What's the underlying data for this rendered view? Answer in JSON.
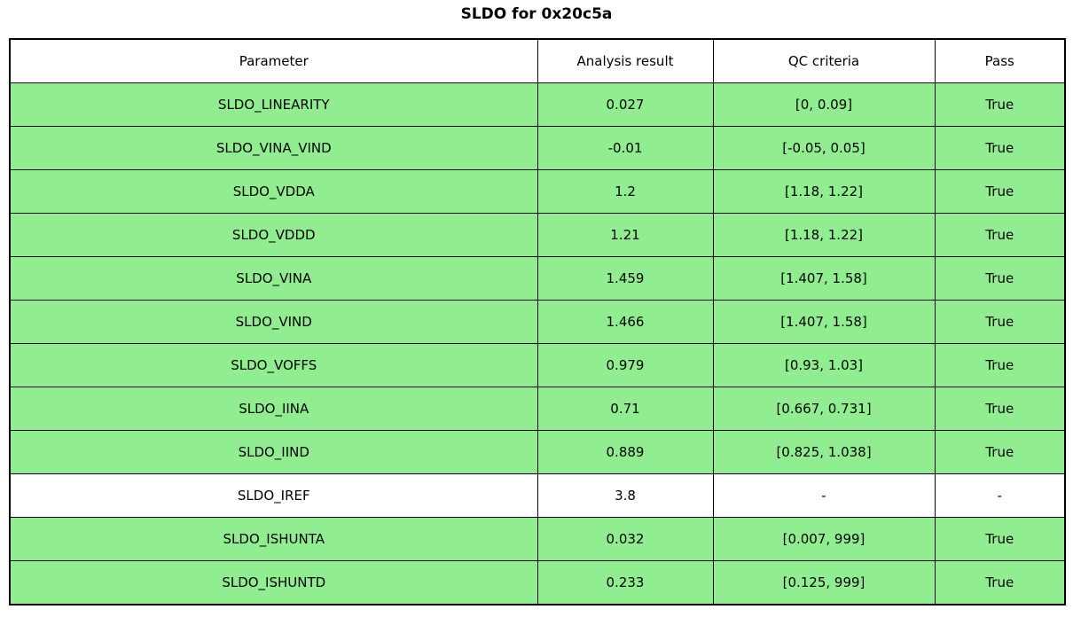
{
  "title": "SLDO for 0x20c5a",
  "table": {
    "columns": [
      "Parameter",
      "Analysis result",
      "QC criteria",
      "Pass"
    ],
    "row_colors": {
      "pass": "#90EE90",
      "neutral": "#ffffff"
    },
    "rows": [
      {
        "parameter": "SLDO_LINEARITY",
        "analysis_result": "0.027",
        "qc_criteria": "[0, 0.09]",
        "pass": "True",
        "color": "green"
      },
      {
        "parameter": "SLDO_VINA_VIND",
        "analysis_result": "-0.01",
        "qc_criteria": "[-0.05, 0.05]",
        "pass": "True",
        "color": "green"
      },
      {
        "parameter": "SLDO_VDDA",
        "analysis_result": "1.2",
        "qc_criteria": "[1.18, 1.22]",
        "pass": "True",
        "color": "green"
      },
      {
        "parameter": "SLDO_VDDD",
        "analysis_result": "1.21",
        "qc_criteria": "[1.18, 1.22]",
        "pass": "True",
        "color": "green"
      },
      {
        "parameter": "SLDO_VINA",
        "analysis_result": "1.459",
        "qc_criteria": "[1.407, 1.58]",
        "pass": "True",
        "color": "green"
      },
      {
        "parameter": "SLDO_VIND",
        "analysis_result": "1.466",
        "qc_criteria": "[1.407, 1.58]",
        "pass": "True",
        "color": "green"
      },
      {
        "parameter": "SLDO_VOFFS",
        "analysis_result": "0.979",
        "qc_criteria": "[0.93, 1.03]",
        "pass": "True",
        "color": "green"
      },
      {
        "parameter": "SLDO_IINA",
        "analysis_result": "0.71",
        "qc_criteria": "[0.667, 0.731]",
        "pass": "True",
        "color": "green"
      },
      {
        "parameter": "SLDO_IIND",
        "analysis_result": "0.889",
        "qc_criteria": "[0.825, 1.038]",
        "pass": "True",
        "color": "green"
      },
      {
        "parameter": "SLDO_IREF",
        "analysis_result": "3.8",
        "qc_criteria": "-",
        "pass": "-",
        "color": "white"
      },
      {
        "parameter": "SLDO_ISHUNTA",
        "analysis_result": "0.032",
        "qc_criteria": "[0.007, 999]",
        "pass": "True",
        "color": "green"
      },
      {
        "parameter": "SLDO_ISHUNTD",
        "analysis_result": "0.233",
        "qc_criteria": "[0.125, 999]",
        "pass": "True",
        "color": "green"
      }
    ]
  },
  "chart_data": {
    "type": "table",
    "title": "SLDO for 0x20c5a",
    "columns": [
      "Parameter",
      "Analysis result",
      "QC criteria",
      "Pass"
    ],
    "rows": [
      [
        "SLDO_LINEARITY",
        0.027,
        "[0, 0.09]",
        "True"
      ],
      [
        "SLDO_VINA_VIND",
        -0.01,
        "[-0.05, 0.05]",
        "True"
      ],
      [
        "SLDO_VDDA",
        1.2,
        "[1.18, 1.22]",
        "True"
      ],
      [
        "SLDO_VDDD",
        1.21,
        "[1.18, 1.22]",
        "True"
      ],
      [
        "SLDO_VINA",
        1.459,
        "[1.407, 1.58]",
        "True"
      ],
      [
        "SLDO_VIND",
        1.466,
        "[1.407, 1.58]",
        "True"
      ],
      [
        "SLDO_VOFFS",
        0.979,
        "[0.93, 1.03]",
        "True"
      ],
      [
        "SLDO_IINA",
        0.71,
        "[0.667, 0.731]",
        "True"
      ],
      [
        "SLDO_IIND",
        0.889,
        "[0.825, 1.038]",
        "True"
      ],
      [
        "SLDO_IREF",
        3.8,
        "-",
        "-"
      ],
      [
        "SLDO_ISHUNTA",
        0.032,
        "[0.007, 999]",
        "True"
      ],
      [
        "SLDO_ISHUNTD",
        0.233,
        "[0.125, 999]",
        "True"
      ]
    ]
  }
}
